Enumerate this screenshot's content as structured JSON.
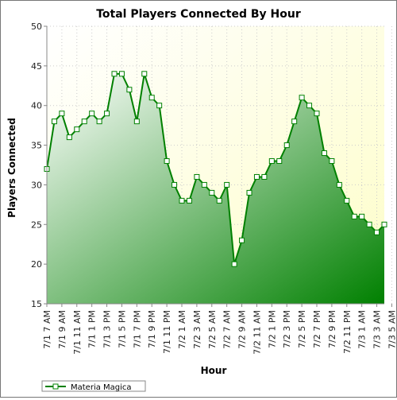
{
  "chart_data": {
    "type": "area",
    "title": "Total Players Connected By Hour",
    "xlabel": "Hour",
    "ylabel": "Players Connected",
    "ylim": [
      15,
      50
    ],
    "yticks": [
      15,
      20,
      25,
      30,
      35,
      40,
      45,
      50
    ],
    "x_tick_labels": [
      "7/1 7 AM",
      "7/1 9 AM",
      "7/1 11 AM",
      "7/1 1 PM",
      "7/1 3 PM",
      "7/1 5 PM",
      "7/1 7 PM",
      "7/1 9 PM",
      "7/1 11 PM",
      "7/2 1 AM",
      "7/2 3 AM",
      "7/2 5 AM",
      "7/2 7 AM",
      "7/2 9 AM",
      "7/2 11 AM",
      "7/2 1 PM",
      "7/2 3 PM",
      "7/2 5 PM",
      "7/2 7 PM",
      "7/2 9 PM",
      "7/2 11 PM",
      "7/3 1 AM",
      "7/3 3 AM",
      "7/3 5 AM"
    ],
    "grid": true,
    "legend_position": "bottom-left",
    "series": [
      {
        "name": "Materia Magica",
        "color": "#008000",
        "values": [
          32,
          38,
          39,
          36,
          37,
          38,
          39,
          38,
          39,
          44,
          44,
          42,
          38,
          44,
          41,
          40,
          33,
          30,
          28,
          28,
          31,
          30,
          29,
          28,
          30,
          20,
          23,
          29,
          31,
          31,
          33,
          33,
          35,
          38,
          41,
          40,
          39,
          34,
          33,
          30,
          28,
          26,
          26,
          25,
          24,
          25
        ]
      }
    ]
  }
}
